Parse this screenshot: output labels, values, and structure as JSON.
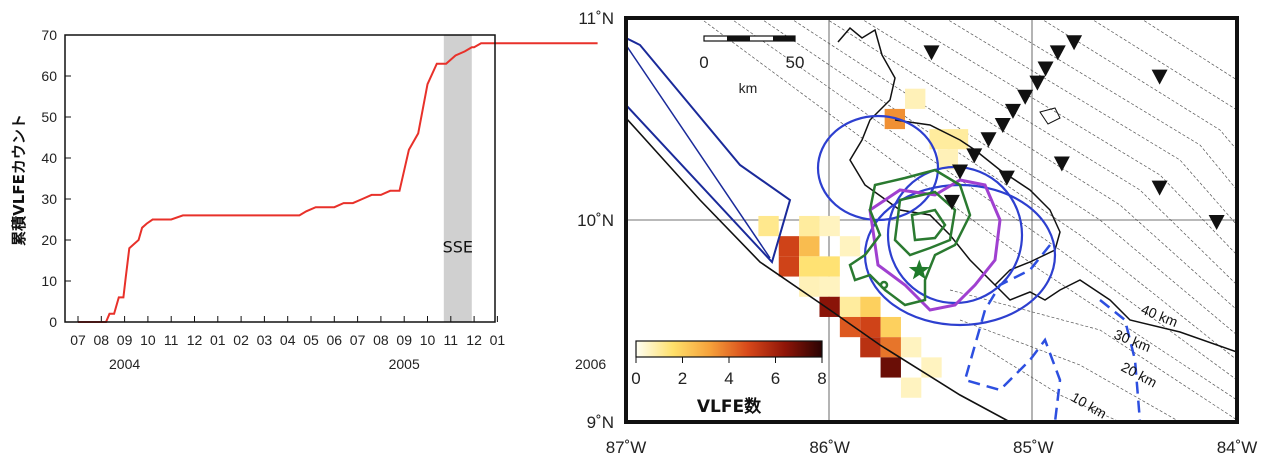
{
  "chart_data": [
    {
      "type": "line",
      "ylabel": "累積VLFEカウント",
      "ylim": [
        0,
        70
      ],
      "yticks": [
        0,
        10,
        20,
        30,
        40,
        50,
        60,
        70
      ],
      "xtick_labels": [
        "07",
        "08",
        "09",
        "10",
        "11",
        "12",
        "01",
        "02",
        "03",
        "04",
        "05",
        "06",
        "07",
        "08",
        "09",
        "10",
        "11",
        "12",
        "01"
      ],
      "year_labels": [
        {
          "label": "2004",
          "at": 2
        },
        {
          "label": "2005",
          "at": 14
        },
        {
          "label": "2006",
          "at": 22
        }
      ],
      "shaded_span": {
        "label": "SSE",
        "from": 15.7,
        "to": 16.9
      },
      "line_color": "#e8312a",
      "series": [
        {
          "x": [
            0,
            1.2,
            1.35,
            1.55,
            1.75,
            1.95,
            2.05,
            2.2,
            2.4,
            2.6,
            2.75,
            2.95,
            3.2,
            4.0,
            4.5,
            9.3,
            9.5,
            9.8,
            10.2,
            10.6,
            11.0,
            11.4,
            11.8,
            12.2,
            12.6,
            13.0,
            13.4,
            13.8,
            14.2,
            14.6,
            15.0,
            15.4,
            15.8,
            16.0,
            16.2,
            16.6,
            16.9,
            17.0,
            17.3,
            17.6,
            18.0,
            18.8,
            20.5,
            22.3
          ],
          "y": [
            0,
            0,
            2,
            2,
            6,
            6,
            11,
            18,
            19,
            20,
            23,
            24,
            25,
            25,
            26,
            26,
            26,
            27,
            28,
            28,
            28,
            29,
            29,
            30,
            31,
            31,
            32,
            32,
            42,
            46,
            58,
            63,
            63,
            64,
            65,
            66,
            67,
            67,
            68,
            68,
            68,
            68,
            68,
            68
          ]
        }
      ]
    },
    {
      "type": "heatmap",
      "xticks": [
        "87˚W",
        "86˚W",
        "85˚W",
        "84˚W"
      ],
      "yticks": [
        "9˚N",
        "10˚N",
        "11˚N"
      ],
      "xlim": [
        -87,
        -84
      ],
      "ylim": [
        9,
        11
      ],
      "colorbar": {
        "label": "VLFE数",
        "ticks": [
          0,
          2,
          4,
          6,
          8
        ],
        "colors": [
          "#fffff4",
          "#ffe06a",
          "#f5a03a",
          "#d8491a",
          "#901508",
          "#2a0303"
        ]
      },
      "scalebar": {
        "ticks": [
          "0",
          "50"
        ],
        "unit": "km"
      },
      "depth_contours": [
        "40 km",
        "30 km",
        "20 km",
        "10 km"
      ],
      "cells": [
        {
          "lon": -85.58,
          "lat": 10.6,
          "v": 0.7
        },
        {
          "lon": -85.68,
          "lat": 10.5,
          "v": 3.5
        },
        {
          "lon": -85.46,
          "lat": 10.4,
          "v": 1.0
        },
        {
          "lon": -85.37,
          "lat": 10.4,
          "v": 1.0
        },
        {
          "lon": -85.42,
          "lat": 10.3,
          "v": 0.7
        },
        {
          "lon": -86.3,
          "lat": 9.97,
          "v": 1.2
        },
        {
          "lon": -86.2,
          "lat": 9.87,
          "v": 5.0
        },
        {
          "lon": -86.2,
          "lat": 9.77,
          "v": 5.0
        },
        {
          "lon": -86.1,
          "lat": 9.97,
          "v": 1.0
        },
        {
          "lon": -86.0,
          "lat": 9.97,
          "v": 0.6
        },
        {
          "lon": -86.1,
          "lat": 9.87,
          "v": 2.5
        },
        {
          "lon": -86.1,
          "lat": 9.77,
          "v": 1.5
        },
        {
          "lon": -86.1,
          "lat": 9.67,
          "v": 0.7
        },
        {
          "lon": -86.0,
          "lat": 9.77,
          "v": 1.5
        },
        {
          "lon": -86.0,
          "lat": 9.67,
          "v": 0.6
        },
        {
          "lon": -86.0,
          "lat": 9.57,
          "v": 6.5
        },
        {
          "lon": -85.9,
          "lat": 9.57,
          "v": 1.0
        },
        {
          "lon": -85.9,
          "lat": 9.87,
          "v": 0.6
        },
        {
          "lon": -85.8,
          "lat": 9.57,
          "v": 2.0
        },
        {
          "lon": -85.9,
          "lat": 9.47,
          "v": 4.5
        },
        {
          "lon": -85.8,
          "lat": 9.47,
          "v": 5.0
        },
        {
          "lon": -85.7,
          "lat": 9.47,
          "v": 2.0
        },
        {
          "lon": -85.8,
          "lat": 9.37,
          "v": 5.5
        },
        {
          "lon": -85.7,
          "lat": 9.37,
          "v": 4.0
        },
        {
          "lon": -85.6,
          "lat": 9.37,
          "v": 0.6
        },
        {
          "lon": -85.7,
          "lat": 9.27,
          "v": 7.0
        },
        {
          "lon": -85.5,
          "lat": 9.27,
          "v": 0.6
        },
        {
          "lon": -85.6,
          "lat": 9.17,
          "v": 0.6
        }
      ],
      "stations": [
        [
          -85.5,
          10.83
        ],
        [
          -84.8,
          10.88
        ],
        [
          -84.88,
          10.83
        ],
        [
          -84.94,
          10.75
        ],
        [
          -84.98,
          10.68
        ],
        [
          -85.04,
          10.61
        ],
        [
          -85.1,
          10.54
        ],
        [
          -85.15,
          10.47
        ],
        [
          -85.22,
          10.4
        ],
        [
          -85.29,
          10.32
        ],
        [
          -85.36,
          10.24
        ],
        [
          -85.4,
          10.09
        ],
        [
          -85.13,
          10.21
        ],
        [
          -84.86,
          10.28
        ],
        [
          -84.38,
          10.71
        ],
        [
          -84.38,
          10.16
        ],
        [
          -84.1,
          9.99
        ]
      ],
      "star": [
        -85.56,
        9.75
      ]
    }
  ]
}
